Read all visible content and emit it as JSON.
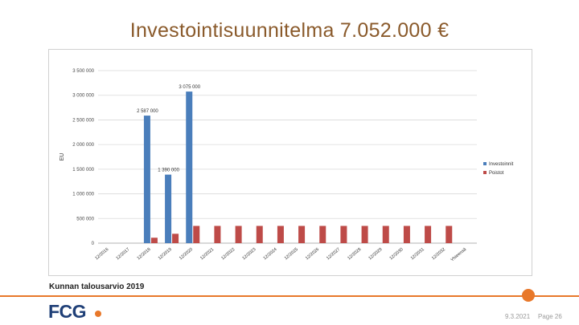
{
  "slide": {
    "title": "Investointisuunnitelma 7.052.000 €",
    "caption": "Kunnan talousarvio 2019",
    "logo": "FCG",
    "date": "9.3.2021",
    "page": "Page 26"
  },
  "colors": {
    "investoinnit": "#4a7ebb",
    "poistot": "#be4b48",
    "accent": "#e8782a",
    "title": "#8a5a2b"
  },
  "chart_data": {
    "type": "bar",
    "ylabel": "EU",
    "ylim": [
      0,
      3500000
    ],
    "yticks": [
      "0",
      "500 000",
      "1 000 000",
      "1 500 000",
      "2 000 000",
      "2 500 000",
      "3 000 000",
      "3 500 000"
    ],
    "categories": [
      "12/2016",
      "12/2017",
      "12/2018",
      "12/2019",
      "12/2020",
      "12/2021",
      "12/2022",
      "12/2023",
      "12/2024",
      "12/2025",
      "12/2026",
      "12/2027",
      "12/2028",
      "12/2029",
      "12/2030",
      "12/2031",
      "12/2032",
      "Yhteensä"
    ],
    "series": [
      {
        "name": "Investoinnit",
        "values": [
          null,
          null,
          2587000,
          1390000,
          3075000,
          null,
          null,
          null,
          null,
          null,
          null,
          null,
          null,
          null,
          null,
          null,
          null,
          null
        ],
        "labels": [
          null,
          null,
          "2 587 000",
          "1 390 000",
          "3 075 000",
          null,
          null,
          null,
          null,
          null,
          null,
          null,
          null,
          null,
          null,
          null,
          null,
          null
        ]
      },
      {
        "name": "Poistot",
        "values": [
          null,
          null,
          110000,
          190000,
          350000,
          350000,
          350000,
          350000,
          350000,
          350000,
          350000,
          350000,
          350000,
          350000,
          350000,
          350000,
          350000,
          null
        ]
      }
    ],
    "grid": true,
    "legend": "right"
  }
}
